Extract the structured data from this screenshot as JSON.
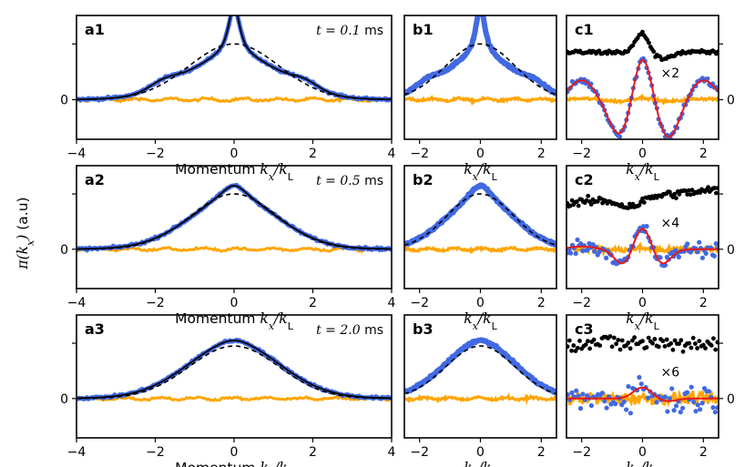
{
  "ylabel_left": "π(k_x) (a.u)",
  "chart_data": {
    "type": "line",
    "colors": {
      "total": "#000000",
      "blue": "#4169e1",
      "orange": "#ffa500",
      "fit": "#e41a1c",
      "dashed": "#000000"
    },
    "rows": [
      {
        "a": {
          "label": "a1",
          "time": "t = 0.1 ms",
          "xlabel": "Momentum k_x/k_L",
          "xlim": [
            -4,
            4
          ],
          "xticks": [
            "−4",
            "−2",
            "0",
            "2",
            "4"
          ],
          "yticks": [
            "0"
          ],
          "peak_height": 1.7,
          "dashed_height": 1.0,
          "width_sharp": 0.25,
          "width_broad": 1.2
        },
        "b": {
          "label": "b1",
          "xlabel": "k_x/k_L",
          "xlim": [
            -2.5,
            2.5
          ],
          "xticks": [
            "−2",
            "0",
            "2"
          ]
        },
        "c": {
          "label": "c1",
          "xlabel": "k_x/k_L",
          "xlim": [
            -2.5,
            2.5
          ],
          "xticks": [
            "−2",
            "0",
            "2"
          ],
          "yticks": [
            "0"
          ],
          "multiplier": "×2",
          "noise": 0.06
        }
      },
      {
        "a": {
          "label": "a2",
          "time": "t = 0.5 ms",
          "xlabel": "Momentum k_x/k_L",
          "xlim": [
            -4,
            4
          ],
          "xticks": [
            "−4",
            "−2",
            "0",
            "2",
            "4"
          ],
          "yticks": [
            "0"
          ],
          "peak_height": 1.15,
          "dashed_height": 1.0,
          "width_sharp": 0.6,
          "width_broad": 1.15
        },
        "b": {
          "label": "b2",
          "xlabel": "k_x/k_L",
          "xlim": [
            -2.5,
            2.5
          ],
          "xticks": [
            "−2",
            "0",
            "2"
          ]
        },
        "c": {
          "label": "c2",
          "xlabel": "k_x/k_L",
          "xlim": [
            -2.5,
            2.5
          ],
          "xticks": [
            "−2",
            "0",
            "2"
          ],
          "yticks": [
            "0"
          ],
          "multiplier": "×4",
          "noise": 0.12
        }
      },
      {
        "a": {
          "label": "a3",
          "time": "t = 2.0 ms",
          "xlabel": "Momentum k_x/k_L",
          "xlim": [
            -4,
            4
          ],
          "xticks": [
            "−4",
            "−2",
            "0",
            "2",
            "4"
          ],
          "yticks": [
            "0"
          ],
          "peak_height": 1.05,
          "dashed_height": 0.95,
          "width_sharp": 0.9,
          "width_broad": 1.2
        },
        "b": {
          "label": "b3",
          "xlabel": "k_x/k_L",
          "xlim": [
            -2.5,
            2.5
          ],
          "xticks": [
            "−2",
            "0",
            "2"
          ]
        },
        "c": {
          "label": "c3",
          "xlabel": "k_x/k_L",
          "xlim": [
            -2.5,
            2.5
          ],
          "xticks": [
            "−2",
            "0",
            "2"
          ],
          "yticks": [
            "0"
          ],
          "multiplier": "×6",
          "noise": 0.25
        }
      }
    ]
  }
}
